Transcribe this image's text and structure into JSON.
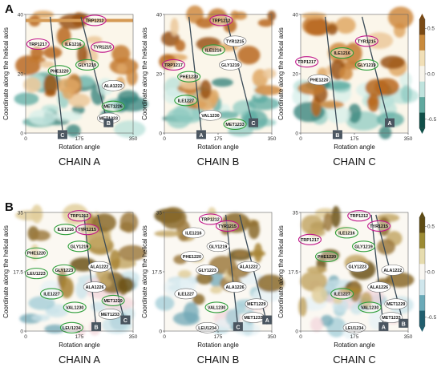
{
  "sections": [
    {
      "letter": "A",
      "ylim": [
        0,
        40
      ],
      "yticks": [
        0,
        20,
        40
      ],
      "panels": [
        {
          "title": "CHAIN A",
          "x_axis_label": "Rotation angle",
          "y_axis_label": "Coordinate along the helical axis",
          "xticks": [
            "0",
            "175",
            "350"
          ],
          "axis_markers": [
            {
              "text": "C",
              "x": 120,
              "y": -2
            },
            {
              "text": "B",
              "x": 270,
              "y": 2
            }
          ],
          "residues": [
            {
              "text": "TRP1212",
              "x": 225,
              "y": 38,
              "ring": "magenta"
            },
            {
              "text": "TRP1217",
              "x": 40,
              "y": 30,
              "ring": "magenta"
            },
            {
              "text": "ILE1216",
              "x": 155,
              "y": 30,
              "ring": "green"
            },
            {
              "text": "TYR1215",
              "x": 250,
              "y": 29,
              "ring": "magenta"
            },
            {
              "text": "GLY1219",
              "x": 200,
              "y": 23,
              "ring": "green"
            },
            {
              "text": "PHE1220",
              "x": 110,
              "y": 21,
              "ring": "green"
            },
            {
              "text": "ALA1222",
              "x": 285,
              "y": 16,
              "ring": "none"
            },
            {
              "text": "MET1226",
              "x": 285,
              "y": 9,
              "ring": "green"
            },
            {
              "text": "MET1233",
              "x": 270,
              "y": 5,
              "ring": "none"
            }
          ]
        },
        {
          "title": "CHAIN B",
          "x_axis_label": "Rotation angle",
          "y_axis_label": "Coordinate along the helical axis",
          "xticks": [
            "0",
            "175",
            "350"
          ],
          "axis_markers": [
            {
              "text": "A",
              "x": 120,
              "y": -2
            },
            {
              "text": "C",
              "x": 290,
              "y": 2
            }
          ],
          "residues": [
            {
              "text": "TRP1212",
              "x": 185,
              "y": 38,
              "ring": "magenta"
            },
            {
              "text": "TYR1215",
              "x": 230,
              "y": 31,
              "ring": "none"
            },
            {
              "text": "ILE1216",
              "x": 160,
              "y": 28,
              "ring": "green"
            },
            {
              "text": "TRP1217",
              "x": 30,
              "y": 23,
              "ring": "magenta"
            },
            {
              "text": "GLY1219",
              "x": 215,
              "y": 23,
              "ring": "none"
            },
            {
              "text": "PHE1220",
              "x": 80,
              "y": 19,
              "ring": "green"
            },
            {
              "text": "ILE1227",
              "x": 70,
              "y": 11,
              "ring": "green"
            },
            {
              "text": "VAL1230",
              "x": 150,
              "y": 6,
              "ring": "none"
            },
            {
              "text": "MET1233",
              "x": 230,
              "y": 3,
              "ring": "green"
            }
          ]
        },
        {
          "title": "CHAIN C",
          "x_axis_label": "Rotation angle",
          "y_axis_label": "Coordinate along the helical axis",
          "xticks": [
            "0",
            "175",
            "350"
          ],
          "axis_markers": [
            {
              "text": "B",
              "x": 120,
              "y": -2
            },
            {
              "text": "A",
              "x": 290,
              "y": 2
            }
          ],
          "residues": [
            {
              "text": "TYR1215",
              "x": 215,
              "y": 31,
              "ring": "magenta"
            },
            {
              "text": "TRP1217",
              "x": 20,
              "y": 24,
              "ring": "magenta"
            },
            {
              "text": "ILE1216",
              "x": 135,
              "y": 27,
              "ring": "green"
            },
            {
              "text": "GLY1219",
              "x": 215,
              "y": 23,
              "ring": "green"
            },
            {
              "text": "PHE1220",
              "x": 60,
              "y": 18,
              "ring": "none"
            }
          ]
        }
      ]
    },
    {
      "letter": "B",
      "ylim": [
        0,
        35
      ],
      "yticks": [
        0,
        17.5,
        35
      ],
      "panels": [
        {
          "title": "CHAIN A",
          "x_axis_label": "Rotation angle",
          "y_axis_label": "Coordinate along the helical axis",
          "xticks": [
            "0",
            "175",
            "350"
          ],
          "axis_markers": [
            {
              "text": "B",
              "x": 230,
              "y": 0
            },
            {
              "text": "C",
              "x": 325,
              "y": 2
            }
          ],
          "residues": [
            {
              "text": "TRP1212",
              "x": 175,
              "y": 34,
              "ring": "magenta"
            },
            {
              "text": "ILE1216",
              "x": 130,
              "y": 30,
              "ring": "green"
            },
            {
              "text": "TYR1215",
              "x": 200,
              "y": 30,
              "ring": "magenta"
            },
            {
              "text": "GLY1219",
              "x": 175,
              "y": 25,
              "ring": "green"
            },
            {
              "text": "PHE1220",
              "x": 35,
              "y": 23,
              "ring": "green"
            },
            {
              "text": "LEU1223",
              "x": 35,
              "y": 17,
              "ring": "green"
            },
            {
              "text": "GLY1223",
              "x": 125,
              "y": 18,
              "ring": "green"
            },
            {
              "text": "ALA1222",
              "x": 240,
              "y": 19,
              "ring": "none"
            },
            {
              "text": "ALA1226",
              "x": 225,
              "y": 13,
              "ring": "none"
            },
            {
              "text": "ILE1227",
              "x": 85,
              "y": 11,
              "ring": "green"
            },
            {
              "text": "MET1229",
              "x": 285,
              "y": 9,
              "ring": "green"
            },
            {
              "text": "VAL1230",
              "x": 160,
              "y": 7,
              "ring": "green"
            },
            {
              "text": "MET1233",
              "x": 275,
              "y": 5,
              "ring": "none"
            },
            {
              "text": "LEU1234",
              "x": 150,
              "y": 1,
              "ring": "green"
            }
          ]
        },
        {
          "title": "CHAIN B",
          "x_axis_label": "Rotation angle",
          "y_axis_label": "Coordinate along the helical axis",
          "xticks": [
            "0",
            "175",
            "350"
          ],
          "axis_markers": [
            {
              "text": "C",
              "x": 240,
              "y": 0
            },
            {
              "text": "A",
              "x": 335,
              "y": 2
            }
          ],
          "residues": [
            {
              "text": "TRP1212",
              "x": 150,
              "y": 33,
              "ring": "magenta"
            },
            {
              "text": "TYR1215",
              "x": 205,
              "y": 31,
              "ring": "magenta"
            },
            {
              "text": "ILE1216",
              "x": 95,
              "y": 29,
              "ring": "none"
            },
            {
              "text": "GLY1219",
              "x": 175,
              "y": 25,
              "ring": "none"
            },
            {
              "text": "PHE1220",
              "x": 90,
              "y": 22,
              "ring": "none"
            },
            {
              "text": "GLY1223",
              "x": 140,
              "y": 18,
              "ring": "none"
            },
            {
              "text": "ALA1222",
              "x": 275,
              "y": 19,
              "ring": "none"
            },
            {
              "text": "ALA1226",
              "x": 230,
              "y": 13,
              "ring": "none"
            },
            {
              "text": "ILE1227",
              "x": 70,
              "y": 11,
              "ring": "none"
            },
            {
              "text": "MET1229",
              "x": 300,
              "y": 8,
              "ring": "none"
            },
            {
              "text": "VAL1230",
              "x": 170,
              "y": 7,
              "ring": "green"
            },
            {
              "text": "MET1233",
              "x": 290,
              "y": 4,
              "ring": "none"
            },
            {
              "text": "LEU1234",
              "x": 140,
              "y": 1,
              "ring": "none"
            }
          ]
        },
        {
          "title": "CHAIN C",
          "x_axis_label": "Rotation angle",
          "y_axis_label": "Coordinate along the helical axis",
          "xticks": [
            "0",
            "175",
            "350"
          ],
          "axis_markers": [
            {
              "text": "A",
              "x": 270,
              "y": 0
            },
            {
              "text": "B",
              "x": 335,
              "y": 1
            }
          ],
          "residues": [
            {
              "text": "TRP1212",
              "x": 190,
              "y": 34,
              "ring": "magenta"
            },
            {
              "text": "TYR1215",
              "x": 255,
              "y": 31,
              "ring": "magenta"
            },
            {
              "text": "ILE1216",
              "x": 150,
              "y": 29,
              "ring": "green"
            },
            {
              "text": "TRP1217",
              "x": 30,
              "y": 27,
              "ring": "magenta"
            },
            {
              "text": "GLY1219",
              "x": 205,
              "y": 25,
              "ring": "green"
            },
            {
              "text": "PHE1220",
              "x": 85,
              "y": 22,
              "ring": "green"
            },
            {
              "text": "GLY1223",
              "x": 185,
              "y": 19,
              "ring": "none"
            },
            {
              "text": "ALA1222",
              "x": 300,
              "y": 18,
              "ring": "none"
            },
            {
              "text": "ALA1226",
              "x": 255,
              "y": 13,
              "ring": "none"
            },
            {
              "text": "ILE1227",
              "x": 135,
              "y": 11,
              "ring": "green"
            },
            {
              "text": "MET1229",
              "x": 310,
              "y": 8,
              "ring": "none"
            },
            {
              "text": "VAL1230",
              "x": 225,
              "y": 7,
              "ring": "green"
            },
            {
              "text": "MET1233",
              "x": 295,
              "y": 4,
              "ring": "none"
            },
            {
              "text": "LEU1234",
              "x": 175,
              "y": 1,
              "ring": "none"
            }
          ]
        }
      ]
    }
  ],
  "colorbars": [
    {
      "ticks": [
        0.5,
        0.0,
        -0.5
      ],
      "tick_labels": [
        "0.5",
        "0.0",
        "-0.5"
      ],
      "range": [
        -0.6,
        0.6
      ],
      "colors": [
        "#7a4a14",
        "#c98a3c",
        "#f1dfb6",
        "#f7f4ea",
        "#bfe3dd",
        "#5fa89e",
        "#0f4f48"
      ]
    },
    {
      "ticks": [
        0.5,
        0.0,
        -0.5
      ],
      "tick_labels": [
        "0.5",
        "0.0",
        "-0.5"
      ],
      "range": [
        -0.6,
        0.6
      ],
      "colors": [
        "#5e4b12",
        "#9b8a32",
        "#e6dcae",
        "#f9f7f2",
        "#cfe6ec",
        "#6aaab8",
        "#1f5e6e"
      ]
    }
  ],
  "chart_data": [
    {
      "type": "heatmap",
      "title": "CHAIN A",
      "section": "A",
      "xlabel": "Rotation angle",
      "ylabel": "Coordinate along the helical axis",
      "xlim": [
        0,
        350
      ],
      "ylim": [
        0,
        40
      ]
    },
    {
      "type": "heatmap",
      "title": "CHAIN B",
      "section": "A",
      "xlabel": "Rotation angle",
      "ylabel": "Coordinate along the helical axis",
      "xlim": [
        0,
        350
      ],
      "ylim": [
        0,
        40
      ]
    },
    {
      "type": "heatmap",
      "title": "CHAIN C",
      "section": "A",
      "xlabel": "Rotation angle",
      "ylabel": "Coordinate along the helical axis",
      "xlim": [
        0,
        350
      ],
      "ylim": [
        0,
        40
      ]
    },
    {
      "type": "heatmap",
      "title": "CHAIN A",
      "section": "B",
      "xlabel": "Rotation angle",
      "ylabel": "Coordinate along the helical axis",
      "xlim": [
        0,
        350
      ],
      "ylim": [
        0,
        35
      ]
    },
    {
      "type": "heatmap",
      "title": "CHAIN B",
      "section": "B",
      "xlabel": "Rotation angle",
      "ylabel": "Coordinate along the helical axis",
      "xlim": [
        0,
        350
      ],
      "ylim": [
        0,
        35
      ]
    },
    {
      "type": "heatmap",
      "title": "CHAIN C",
      "section": "B",
      "xlabel": "Rotation angle",
      "ylabel": "Coordinate along the helical axis",
      "xlim": [
        0,
        350
      ],
      "ylim": [
        0,
        35
      ]
    }
  ]
}
